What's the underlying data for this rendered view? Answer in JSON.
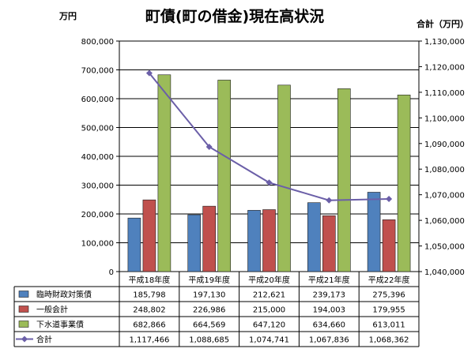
{
  "chart_data": {
    "type": "bar",
    "title": "町債(町の借金)現在高状況",
    "y_left_unit": "万円",
    "y_right_unit": "合計（万円）",
    "ylim_left": [
      0,
      800000
    ],
    "ylim_right": [
      1040000,
      1130000
    ],
    "y_left_ticks": [
      "0",
      "100,000",
      "200,000",
      "300,000",
      "400,000",
      "500,000",
      "600,000",
      "700,000",
      "800,000"
    ],
    "y_right_ticks": [
      "1,040,000",
      "1,050,000",
      "1,060,000",
      "1,070,000",
      "1,080,000",
      "1,090,000",
      "1,100,000",
      "1,110,000",
      "1,120,000",
      "1,130,000"
    ],
    "categories": [
      "平成18年度",
      "平成19年度",
      "平成20年度",
      "平成21年度",
      "平成22年度"
    ],
    "series": [
      {
        "name": "臨時財政対策債",
        "type": "bar",
        "axis": "left",
        "color": "#4f81bd",
        "values": [
          185798,
          197130,
          212621,
          239173,
          275396
        ],
        "labels": [
          "185,798",
          "197,130",
          "212,621",
          "239,173",
          "275,396"
        ]
      },
      {
        "name": "一般会計",
        "type": "bar",
        "axis": "left",
        "color": "#c0504d",
        "values": [
          248802,
          226986,
          215000,
          194003,
          179955
        ],
        "labels": [
          "248,802",
          "226,986",
          "215,000",
          "194,003",
          "179,955"
        ]
      },
      {
        "name": "下水道事業債",
        "type": "bar",
        "axis": "left",
        "color": "#9bbb59",
        "values": [
          682866,
          664569,
          647120,
          634660,
          613011
        ],
        "labels": [
          "682,866",
          "664,569",
          "647,120",
          "634,660",
          "613,011"
        ]
      },
      {
        "name": "合計",
        "type": "line",
        "axis": "right",
        "color": "#6b5fa8",
        "values": [
          1117466,
          1088685,
          1074741,
          1067836,
          1068362
        ],
        "labels": [
          "1,117,466",
          "1,088,685",
          "1,074,741",
          "1,067,836",
          "1,068,362"
        ]
      }
    ],
    "grid": true,
    "legend": "data-table"
  }
}
